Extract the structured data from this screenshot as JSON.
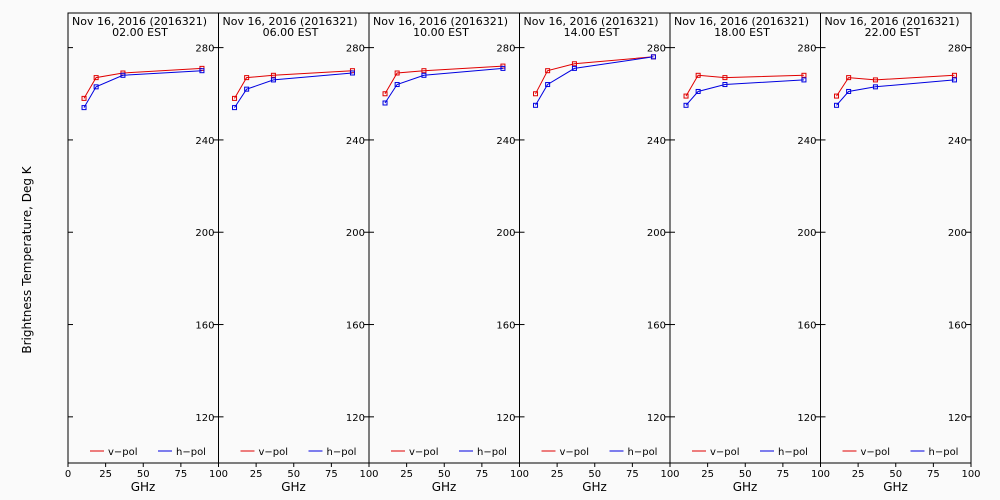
{
  "ylabel": "Brightness Temperature, Deg K",
  "legend": [
    {
      "label": "v−pol",
      "color": "#e00000"
    },
    {
      "label": "h−pol",
      "color": "#0000e0"
    }
  ],
  "chart_data": [
    {
      "type": "line",
      "title": "Nov 16, 2016 (2016321)",
      "subtitle": "02.00 EST",
      "xlabel": "GHz",
      "xlim": [
        0,
        100
      ],
      "ylim": [
        100,
        295
      ],
      "xticks": [
        0,
        25,
        50,
        75,
        100
      ],
      "yticks": [
        120,
        160,
        200,
        240,
        280
      ],
      "legend_position": "bottom",
      "series": [
        {
          "name": "v−pol",
          "color": "#e00000",
          "x": [
            10.65,
            18.7,
            36.5,
            89
          ],
          "y": [
            258,
            267,
            269,
            271
          ]
        },
        {
          "name": "h−pol",
          "color": "#0000e0",
          "x": [
            10.65,
            18.7,
            36.5,
            89
          ],
          "y": [
            254,
            263,
            268,
            270
          ]
        }
      ]
    },
    {
      "type": "line",
      "title": "Nov 16, 2016 (2016321)",
      "subtitle": "06.00 EST",
      "xlabel": "GHz",
      "xlim": [
        0,
        100
      ],
      "ylim": [
        100,
        295
      ],
      "xticks": [
        0,
        25,
        50,
        75,
        100
      ],
      "yticks": [
        120,
        160,
        200,
        240,
        280
      ],
      "legend_position": "bottom",
      "series": [
        {
          "name": "v−pol",
          "color": "#e00000",
          "x": [
            10.65,
            18.7,
            36.5,
            89
          ],
          "y": [
            258,
            267,
            268,
            270
          ]
        },
        {
          "name": "h−pol",
          "color": "#0000e0",
          "x": [
            10.65,
            18.7,
            36.5,
            89
          ],
          "y": [
            254,
            262,
            266,
            269
          ]
        }
      ]
    },
    {
      "type": "line",
      "title": "Nov 16, 2016 (2016321)",
      "subtitle": "10.00 EST",
      "xlabel": "GHz",
      "xlim": [
        0,
        100
      ],
      "ylim": [
        100,
        295
      ],
      "xticks": [
        0,
        25,
        50,
        75,
        100
      ],
      "yticks": [
        120,
        160,
        200,
        240,
        280
      ],
      "legend_position": "bottom",
      "series": [
        {
          "name": "v−pol",
          "color": "#e00000",
          "x": [
            10.65,
            18.7,
            36.5,
            89
          ],
          "y": [
            260,
            269,
            270,
            272
          ]
        },
        {
          "name": "h−pol",
          "color": "#0000e0",
          "x": [
            10.65,
            18.7,
            36.5,
            89
          ],
          "y": [
            256,
            264,
            268,
            271
          ]
        }
      ]
    },
    {
      "type": "line",
      "title": "Nov 16, 2016 (2016321)",
      "subtitle": "14.00 EST",
      "xlabel": "GHz",
      "xlim": [
        0,
        100
      ],
      "ylim": [
        100,
        295
      ],
      "xticks": [
        0,
        25,
        50,
        75,
        100
      ],
      "yticks": [
        120,
        160,
        200,
        240,
        280
      ],
      "legend_position": "bottom",
      "series": [
        {
          "name": "v−pol",
          "color": "#e00000",
          "x": [
            10.65,
            18.7,
            36.5,
            89
          ],
          "y": [
            260,
            270,
            273,
            276
          ]
        },
        {
          "name": "h−pol",
          "color": "#0000e0",
          "x": [
            10.65,
            18.7,
            36.5,
            89
          ],
          "y": [
            255,
            264,
            271,
            276
          ]
        }
      ]
    },
    {
      "type": "line",
      "title": "Nov 16, 2016 (2016321)",
      "subtitle": "18.00 EST",
      "xlabel": "GHz",
      "xlim": [
        0,
        100
      ],
      "ylim": [
        100,
        295
      ],
      "xticks": [
        0,
        25,
        50,
        75,
        100
      ],
      "yticks": [
        120,
        160,
        200,
        240,
        280
      ],
      "legend_position": "bottom",
      "series": [
        {
          "name": "v−pol",
          "color": "#e00000",
          "x": [
            10.65,
            18.7,
            36.5,
            89
          ],
          "y": [
            259,
            268,
            267,
            268
          ]
        },
        {
          "name": "h−pol",
          "color": "#0000e0",
          "x": [
            10.65,
            18.7,
            36.5,
            89
          ],
          "y": [
            255,
            261,
            264,
            266
          ]
        }
      ]
    },
    {
      "type": "line",
      "title": "Nov 16, 2016 (2016321)",
      "subtitle": "22.00 EST",
      "xlabel": "GHz",
      "xlim": [
        0,
        100
      ],
      "ylim": [
        100,
        295
      ],
      "xticks": [
        0,
        25,
        50,
        75,
        100
      ],
      "yticks": [
        120,
        160,
        200,
        240,
        280
      ],
      "legend_position": "bottom",
      "series": [
        {
          "name": "v−pol",
          "color": "#e00000",
          "x": [
            10.65,
            18.7,
            36.5,
            89
          ],
          "y": [
            259,
            267,
            266,
            268
          ]
        },
        {
          "name": "h−pol",
          "color": "#0000e0",
          "x": [
            10.65,
            18.7,
            36.5,
            89
          ],
          "y": [
            255,
            261,
            263,
            266
          ]
        }
      ]
    }
  ]
}
